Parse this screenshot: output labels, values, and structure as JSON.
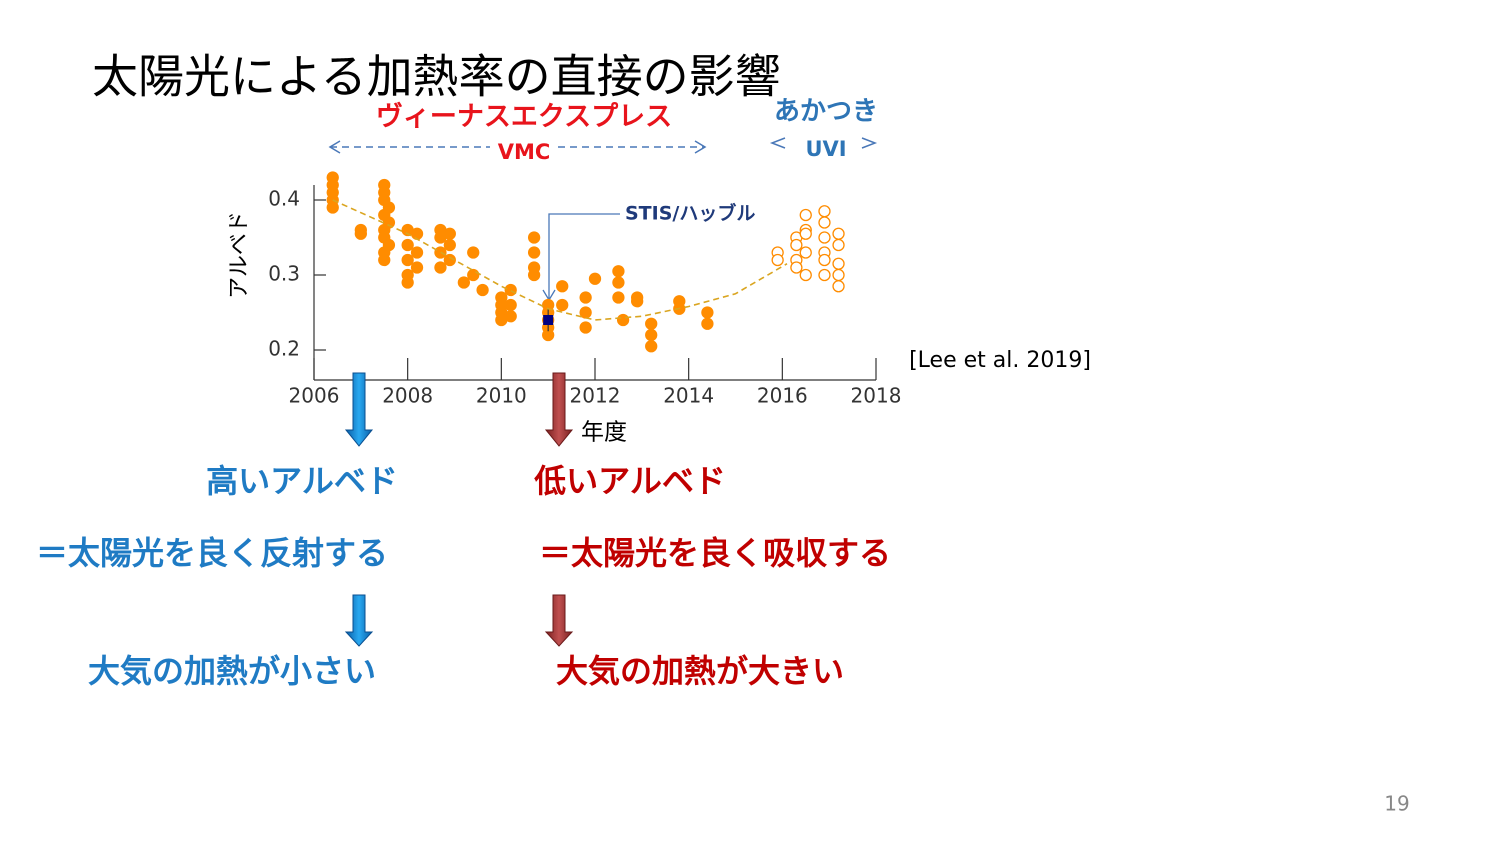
{
  "title": "太陽光による加熱率の直接の影響",
  "chart_data": {
    "type": "scatter",
    "xlim": [
      2006,
      2018
    ],
    "xticks": [
      2006,
      2008,
      2010,
      2012,
      2014,
      2016,
      2018
    ],
    "ylim": [
      0.16,
      0.42
    ],
    "yticks": [
      0.2,
      0.3,
      0.4
    ],
    "xlabel": "年度",
    "ylabel": "アルベド",
    "series": [
      {
        "name": "VMC",
        "color": "#ff8c00",
        "marker": "filled",
        "x": [
          2006.4,
          2006.4,
          2006.4,
          2006.4,
          2006.4,
          2007.0,
          2007.0,
          2007.5,
          2007.5,
          2007.5,
          2007.5,
          2007.5,
          2007.5,
          2007.5,
          2007.5,
          2007.6,
          2007.6,
          2007.6,
          2008.0,
          2008.0,
          2008.0,
          2008.0,
          2008.0,
          2008.2,
          2008.2,
          2008.2,
          2008.7,
          2008.7,
          2008.7,
          2008.7,
          2008.9,
          2008.9,
          2008.9,
          2009.2,
          2009.4,
          2009.4,
          2009.6,
          2010.0,
          2010.0,
          2010.0,
          2010.0,
          2010.2,
          2010.2,
          2010.2,
          2010.7,
          2010.7,
          2010.7,
          2010.7,
          2011.0,
          2011.0,
          2011.0,
          2011.0,
          2011.0,
          2011.3,
          2011.3,
          2011.8,
          2011.8,
          2011.8,
          2012.0,
          2012.5,
          2012.5,
          2012.5,
          2012.6,
          2012.9,
          2012.9,
          2013.2,
          2013.2,
          2013.2,
          2013.8,
          2013.8,
          2014.4,
          2014.4
        ],
        "values": [
          0.43,
          0.42,
          0.41,
          0.4,
          0.39,
          0.36,
          0.355,
          0.42,
          0.41,
          0.4,
          0.38,
          0.36,
          0.35,
          0.33,
          0.32,
          0.39,
          0.37,
          0.34,
          0.36,
          0.34,
          0.32,
          0.3,
          0.29,
          0.355,
          0.33,
          0.31,
          0.36,
          0.35,
          0.33,
          0.31,
          0.355,
          0.34,
          0.32,
          0.29,
          0.33,
          0.3,
          0.28,
          0.27,
          0.26,
          0.25,
          0.24,
          0.28,
          0.26,
          0.245,
          0.35,
          0.33,
          0.31,
          0.3,
          0.26,
          0.25,
          0.24,
          0.23,
          0.22,
          0.285,
          0.26,
          0.27,
          0.25,
          0.23,
          0.295,
          0.305,
          0.29,
          0.27,
          0.24,
          0.27,
          0.265,
          0.235,
          0.22,
          0.205,
          0.265,
          0.255,
          0.25,
          0.235
        ]
      },
      {
        "name": "UVI",
        "color": "#ff8c00",
        "marker": "hollow",
        "x": [
          2015.9,
          2015.9,
          2016.3,
          2016.3,
          2016.3,
          2016.3,
          2016.5,
          2016.5,
          2016.5,
          2016.5,
          2016.5,
          2016.9,
          2016.9,
          2016.9,
          2016.9,
          2016.9,
          2016.9,
          2017.2,
          2017.2,
          2017.2,
          2017.2,
          2017.2
        ],
        "values": [
          0.33,
          0.32,
          0.35,
          0.34,
          0.32,
          0.31,
          0.38,
          0.36,
          0.355,
          0.33,
          0.3,
          0.385,
          0.37,
          0.35,
          0.33,
          0.32,
          0.3,
          0.355,
          0.34,
          0.315,
          0.3,
          0.285
        ]
      },
      {
        "name": "STIS/ハッブル",
        "color": "#000080",
        "marker": "square",
        "x": [
          2011.0
        ],
        "values": [
          0.24
        ],
        "errors": [
          0.015
        ]
      },
      {
        "color": "#daa520",
        "marker": "dashed-line",
        "x": [
          2006.4,
          2008,
          2010,
          2011,
          2012,
          2013,
          2014,
          2015,
          2016.1
        ],
        "values": [
          0.4,
          0.355,
          0.285,
          0.255,
          0.24,
          0.245,
          0.258,
          0.275,
          0.315
        ]
      }
    ],
    "annotations": [
      "ヴィーナスエクスプレス",
      "あかつき"
    ],
    "source": "[Lee et al. 2019]"
  },
  "left": {
    "heading": "高いアルベド",
    "line2": "＝太陽光を良く反射する",
    "line3": "大気の加熱が小さい"
  },
  "right": {
    "heading": "低いアルベド",
    "line2": "＝太陽光を良く吸収する",
    "line3": "大気の加熱が大きい"
  },
  "page_number": "19"
}
